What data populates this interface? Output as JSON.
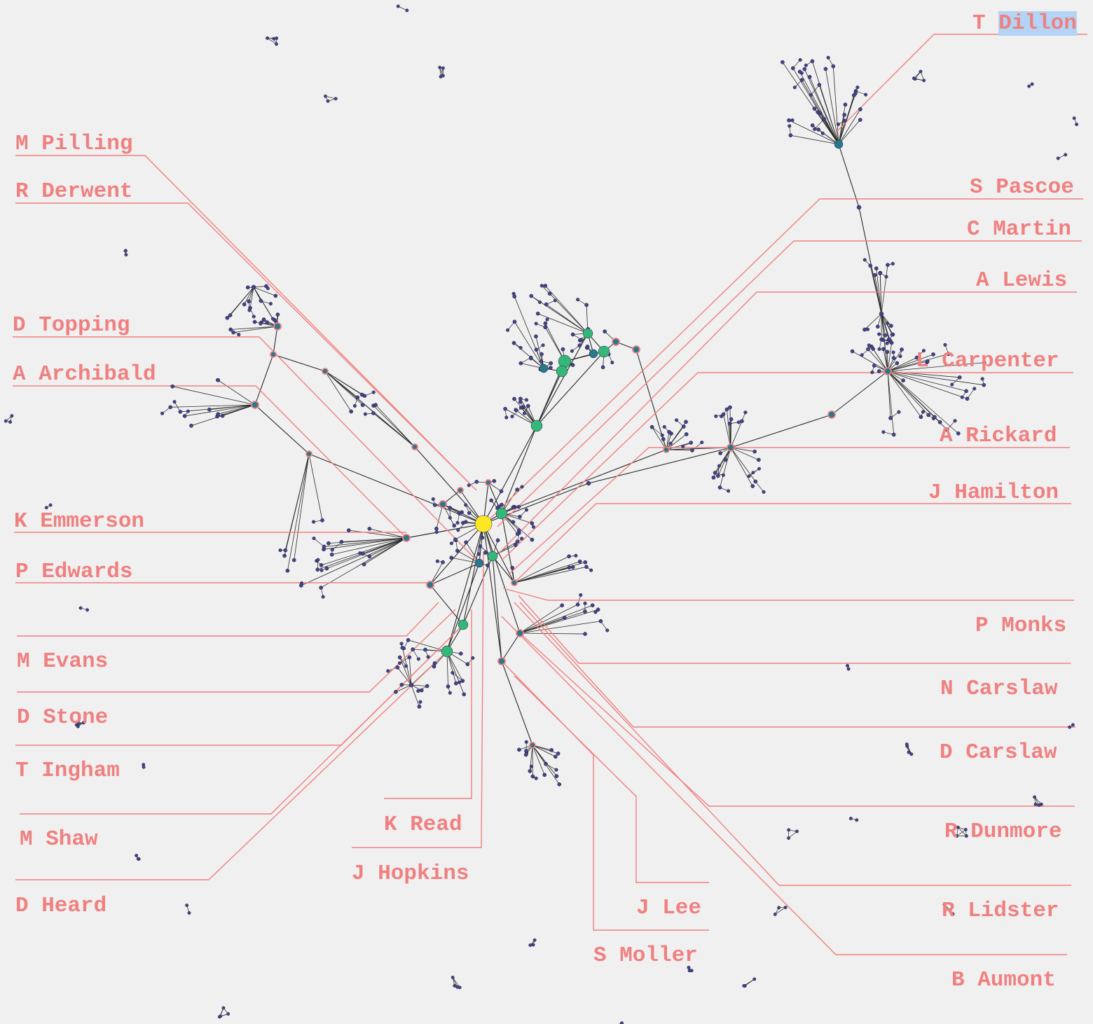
{
  "colors": {
    "background": "#f0f0f0",
    "label": "#f08080",
    "leader": "#f08080",
    "edge": "#2a2a2a",
    "node_small": "#414487",
    "node_mid": "#2a788e",
    "node_high": "#35b779",
    "node_top": "#fde725",
    "selection": "#b3d4f5"
  },
  "people": [
    {
      "first": "T",
      "last": "Dillon",
      "selected": true
    },
    {
      "name": "M Pilling"
    },
    {
      "name": "R Derwent"
    },
    {
      "name": "S Pascoe"
    },
    {
      "name": "C Martin"
    },
    {
      "name": "A Lewis"
    },
    {
      "name": "D Topping"
    },
    {
      "name": "A Archibald"
    },
    {
      "name": "L Carpenter"
    },
    {
      "name": "A Rickard"
    },
    {
      "name": "J Hamilton"
    },
    {
      "name": "K Emmerson"
    },
    {
      "name": "P Edwards"
    },
    {
      "name": "P Monks"
    },
    {
      "name": "M Evans"
    },
    {
      "name": "N Carslaw"
    },
    {
      "name": "D Stone"
    },
    {
      "name": "D Carslaw"
    },
    {
      "name": "T Ingham"
    },
    {
      "name": "K Read"
    },
    {
      "name": "R Dunmore"
    },
    {
      "name": "M Shaw"
    },
    {
      "name": "J Hopkins"
    },
    {
      "name": "D Heard"
    },
    {
      "name": "J Lee"
    },
    {
      "name": "R Lidster"
    },
    {
      "name": "S Moller"
    },
    {
      "name": "B Aumont"
    }
  ]
}
